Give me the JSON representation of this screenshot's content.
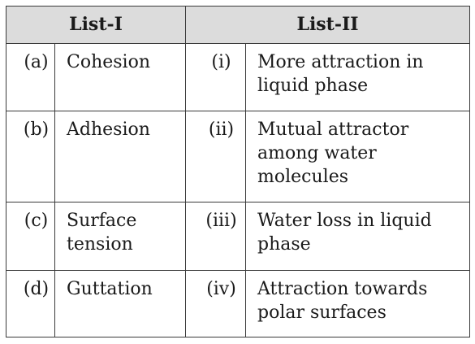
{
  "header": {
    "list1": "List-I",
    "list2": "List-II"
  },
  "rows": [
    {
      "code1": "(a)",
      "term": "Cohesion",
      "code2": "(i)",
      "desc": "More attraction in liquid phase"
    },
    {
      "code1": "(b)",
      "term": "Adhesion",
      "code2": "(ii)",
      "desc": "Mutual attractor among water molecules"
    },
    {
      "code1": "(c)",
      "term": "Surface tension",
      "code2": "(iii)",
      "desc": "Water loss in liquid phase"
    },
    {
      "code1": "(d)",
      "term": "Guttation",
      "code2": "(iv)",
      "desc": "Attraction towards polar surfaces"
    }
  ]
}
